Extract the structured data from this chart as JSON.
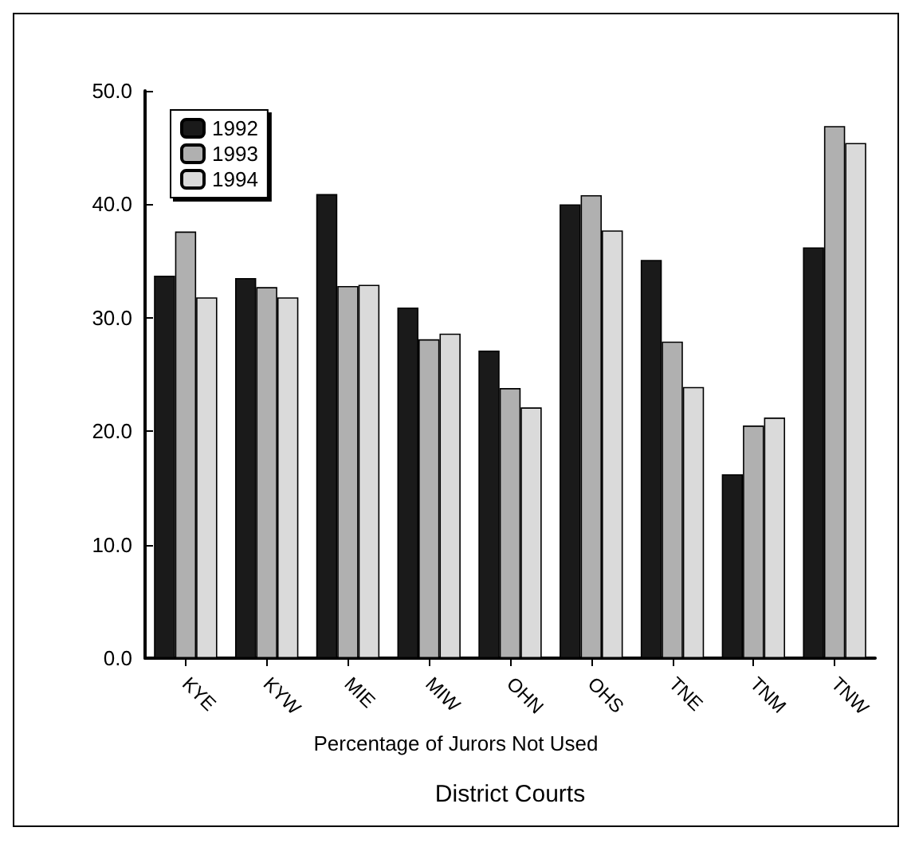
{
  "chart_data": {
    "type": "bar",
    "title": "Percentage of Jurors Not Used",
    "xlabel": "District Courts",
    "categories": [
      "KYE",
      "KYW",
      "MIE",
      "MIW",
      "OHN",
      "OHS",
      "TNE",
      "TNM",
      "TNW"
    ],
    "series": [
      {
        "name": "1992",
        "color": "#1a1a1a",
        "values": [
          33.7,
          33.5,
          40.9,
          30.9,
          27.1,
          40.0,
          35.1,
          16.2,
          36.2
        ]
      },
      {
        "name": "1993",
        "color": "#b0b0b0",
        "values": [
          37.6,
          32.7,
          32.8,
          28.1,
          23.8,
          40.8,
          27.9,
          20.5,
          46.9
        ]
      },
      {
        "name": "1994",
        "color": "#dadada",
        "values": [
          31.8,
          31.8,
          32.9,
          28.6,
          22.1,
          37.7,
          23.9,
          21.2,
          45.4
        ]
      }
    ],
    "ylim": [
      0,
      50
    ],
    "yticks": [
      {
        "value": 0,
        "label": "0.0"
      },
      {
        "value": 10,
        "label": "10.0"
      },
      {
        "value": 20,
        "label": "20.0"
      },
      {
        "value": 30,
        "label": "30.0"
      },
      {
        "value": 40,
        "label": "40.0"
      },
      {
        "value": 50,
        "label": "50.0"
      }
    ],
    "grid": false,
    "legend": "top left"
  }
}
